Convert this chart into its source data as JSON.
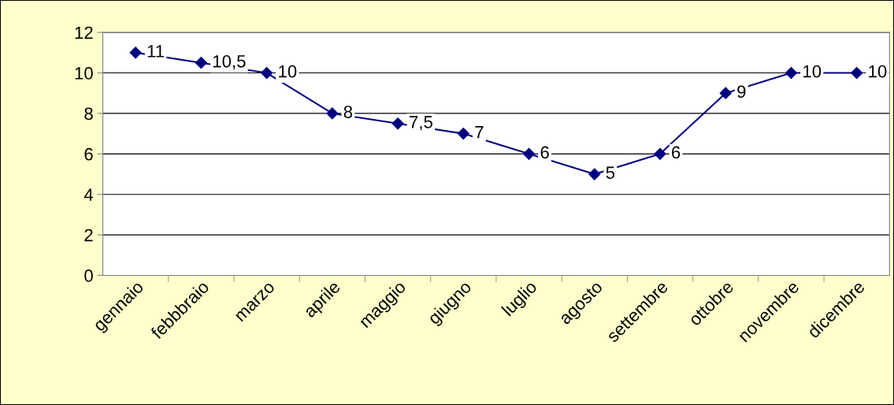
{
  "chart_data": {
    "type": "line",
    "categories": [
      "gennaio",
      "febbbraio",
      "marzo",
      "aprile",
      "maggio",
      "giugno",
      "luglio",
      "agosto",
      "settembre",
      "ottobre",
      "novembre",
      "dicembre"
    ],
    "series": [
      {
        "color": "#000080",
        "values": [
          11,
          10.5,
          10,
          8,
          7.5,
          7,
          6,
          5,
          6,
          9,
          10,
          10
        ],
        "value_labels": [
          "11",
          "10,5",
          "10",
          "8",
          "7,5",
          "7",
          "6",
          "5",
          "6",
          "9",
          "10",
          "10"
        ]
      }
    ],
    "ylim": [
      0,
      12
    ],
    "yticks": [
      0,
      2,
      4,
      6,
      8,
      10,
      12
    ],
    "grid": "y",
    "marker": "diamond",
    "line_style": "solid",
    "legend": false
  }
}
